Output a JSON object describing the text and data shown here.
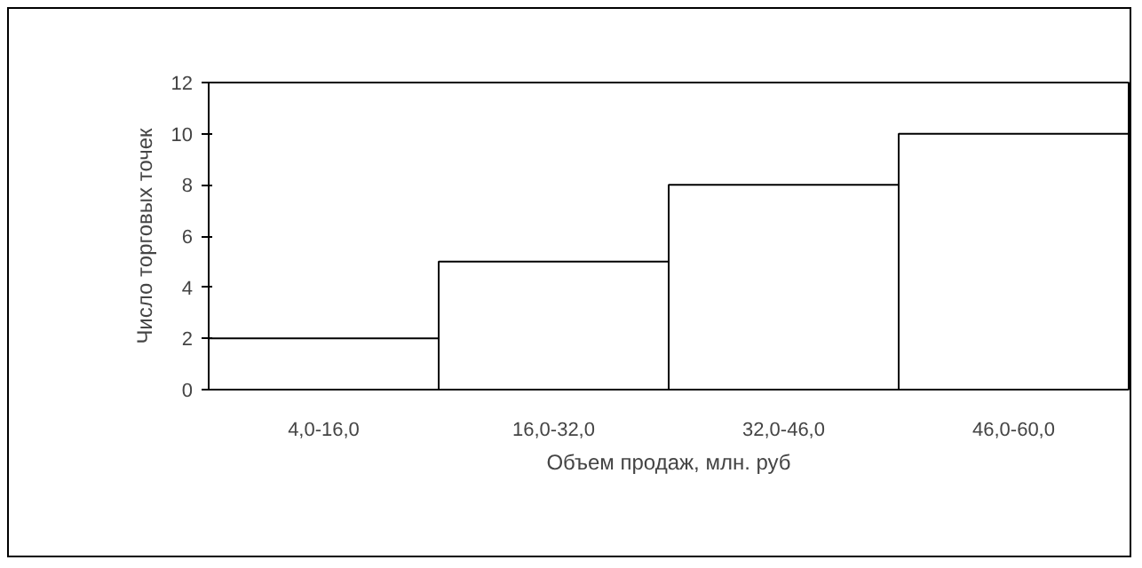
{
  "chart_data": {
    "type": "bar",
    "xlabel": "Объем продаж, млн. руб",
    "ylabel": "Число торговых точек",
    "categories": [
      "4,0-16,0",
      "16,0-32,0",
      "32,0-46,0",
      "46,0-60,0"
    ],
    "values": [
      2,
      5,
      8,
      10
    ],
    "color": "#ffffff",
    "ylim": [
      0,
      12
    ],
    "yticks": [
      0,
      2,
      4,
      6,
      8,
      10,
      12
    ],
    "grid": false
  }
}
